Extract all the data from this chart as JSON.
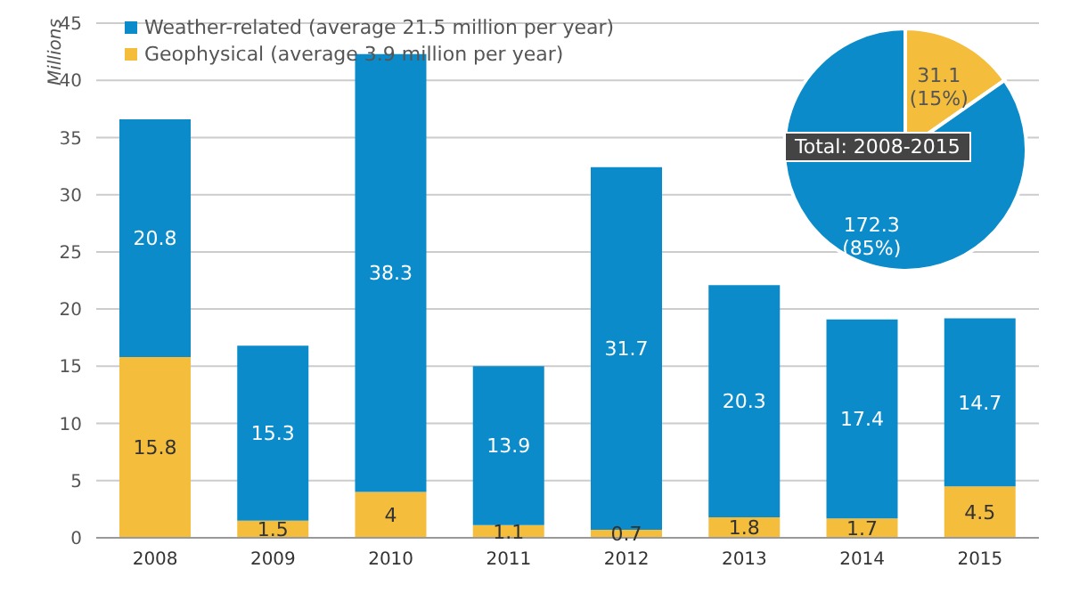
{
  "chart_data": [
    {
      "type": "bar",
      "stacked": true,
      "categories": [
        "2008",
        "2009",
        "2010",
        "2011",
        "2012",
        "2013",
        "2014",
        "2015"
      ],
      "ylabel": "Millions",
      "series": [
        {
          "name": "Geophysical (average 3.9 million per year)",
          "color": "#f5bd3c",
          "values": [
            15.8,
            1.5,
            4,
            1.1,
            0.7,
            1.8,
            1.7,
            4.5
          ]
        },
        {
          "name": "Weather-related (average 21.5 million per year)",
          "color": "#0b8bc9",
          "values": [
            20.8,
            15.3,
            38.3,
            13.9,
            31.7,
            20.3,
            17.4,
            14.7
          ]
        }
      ],
      "ylim": [
        0,
        45
      ],
      "yticks": [
        0,
        5,
        10,
        15,
        20,
        25,
        30,
        35,
        40,
        45
      ],
      "grid": "y",
      "legend": "top left",
      "data_labels": true
    },
    {
      "type": "pie",
      "title": "Total: 2008-2015",
      "categories": [
        null,
        null
      ],
      "values": [
        31.1,
        172.3
      ],
      "colors": [
        "#f5bd3c",
        "#0b8bc9"
      ],
      "value_labels": [
        "31.1 (15%)",
        "172.3 (85%)"
      ]
    }
  ]
}
